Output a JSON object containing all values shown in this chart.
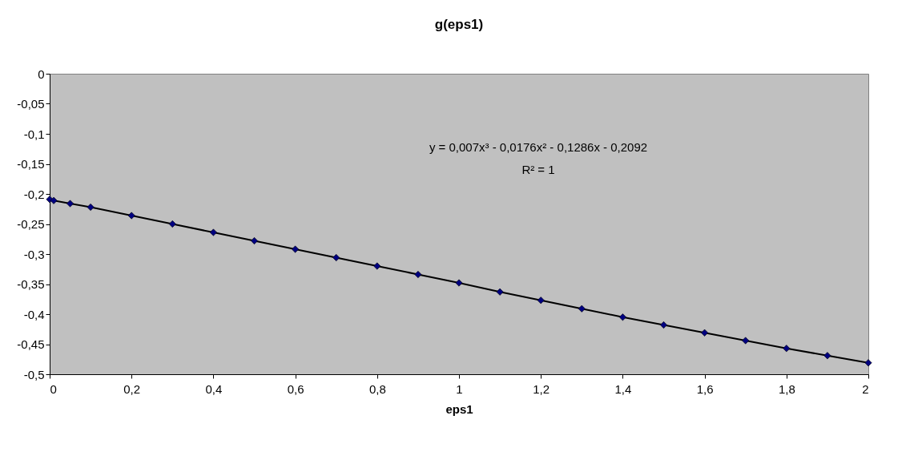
{
  "chart_data": {
    "type": "scatter",
    "title": "g(eps1)",
    "xlabel": "eps1",
    "xlim": [
      0,
      2
    ],
    "ylim": [
      -0.5,
      0
    ],
    "xticks": [
      0,
      {
        "value": 0.2,
        "label": "0,2"
      },
      {
        "value": 0.4,
        "label": "0,4"
      },
      {
        "value": 0.6,
        "label": "0,6"
      },
      {
        "value": 0.8,
        "label": "0,8"
      },
      1,
      {
        "value": 1.2,
        "label": "1,2"
      },
      {
        "value": 1.4,
        "label": "1,4"
      },
      {
        "value": 1.6,
        "label": "1,6"
      },
      {
        "value": 1.8,
        "label": "1,8"
      },
      2
    ],
    "yticks": [
      0,
      {
        "value": -0.05,
        "label": "-0,05"
      },
      {
        "value": -0.1,
        "label": "-0,1"
      },
      {
        "value": -0.15,
        "label": "-0,15"
      },
      {
        "value": -0.2,
        "label": "-0,2"
      },
      {
        "value": -0.25,
        "label": "-0,25"
      },
      {
        "value": -0.3,
        "label": "-0,3"
      },
      {
        "value": -0.35,
        "label": "-0,35"
      },
      {
        "value": -0.4,
        "label": "-0,4"
      },
      {
        "value": -0.45,
        "label": "-0,45"
      },
      {
        "value": -0.5,
        "label": "-0,5"
      }
    ],
    "grid": false,
    "marker": "diamond",
    "annotations": [
      "y = 0,007x³ - 0,0176x² - 0,1286x - 0,2092",
      "R² = 1"
    ],
    "series": [
      {
        "type": "line",
        "color": "#000000",
        "line_style": "solid",
        "marker": "none",
        "x": [
          0,
          0.01,
          0.05,
          0.1,
          0.2,
          0.3,
          0.4,
          0.5,
          0.6,
          0.7,
          0.8,
          0.9,
          1,
          1.1,
          1.2,
          1.3,
          1.4,
          1.5,
          1.6,
          1.7,
          1.8,
          1.9,
          2
        ],
        "values": [
          -0.209,
          -0.211,
          -0.216,
          -0.222,
          -0.236,
          -0.25,
          -0.264,
          -0.278,
          -0.292,
          -0.306,
          -0.32,
          -0.334,
          -0.348,
          -0.363,
          -0.377,
          -0.391,
          -0.405,
          -0.418,
          -0.431,
          -0.444,
          -0.457,
          -0.469,
          -0.481
        ]
      },
      {
        "color": "#000080",
        "x": [
          0,
          0.01,
          0.05,
          0.1,
          0.2,
          0.3,
          0.4,
          0.5,
          0.6,
          0.7,
          0.8,
          0.9,
          1,
          1.1,
          1.2,
          1.3,
          1.4,
          1.5,
          1.6,
          1.7,
          1.8,
          1.9,
          2
        ],
        "values": [
          -0.209,
          -0.211,
          -0.216,
          -0.222,
          -0.236,
          -0.25,
          -0.264,
          -0.278,
          -0.292,
          -0.306,
          -0.32,
          -0.334,
          -0.348,
          -0.363,
          -0.377,
          -0.391,
          -0.405,
          -0.418,
          -0.431,
          -0.444,
          -0.457,
          -0.469,
          -0.481
        ]
      }
    ]
  }
}
